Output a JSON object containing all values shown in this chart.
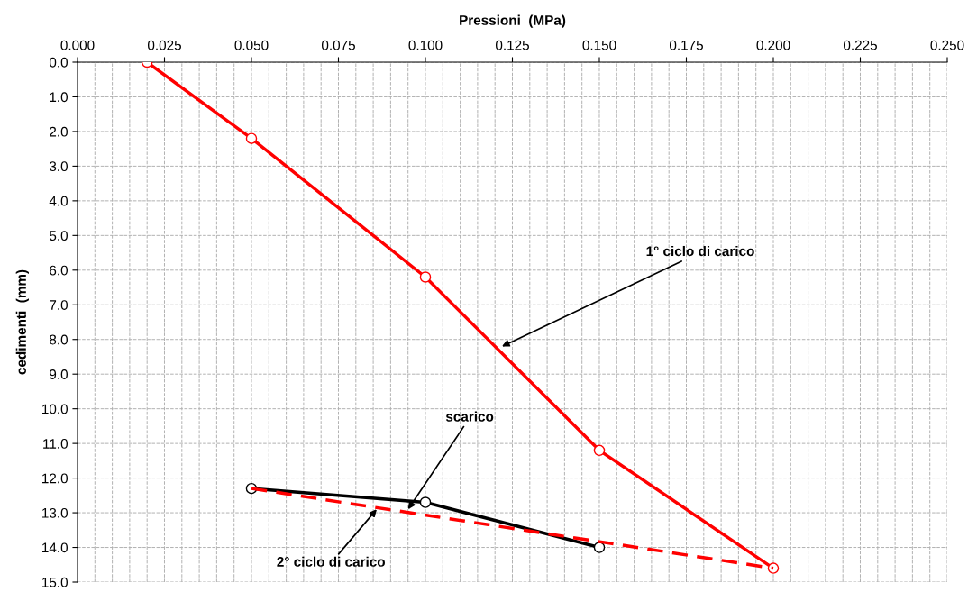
{
  "chart_data": {
    "type": "line",
    "xlabel": "Pressioni  (MPa)",
    "ylabel": "cedimenti  (mm)",
    "xlim": [
      0,
      0.25
    ],
    "ylim": [
      15,
      0
    ],
    "xticks": [
      {
        "value": 0,
        "label": "0.000"
      },
      {
        "value": 0.025,
        "label": "0.025"
      },
      {
        "value": 0.05,
        "label": "0.050"
      },
      {
        "value": 0.075,
        "label": "0.075"
      },
      {
        "value": 0.1,
        "label": "0.100"
      },
      {
        "value": 0.125,
        "label": "0.125"
      },
      {
        "value": 0.15,
        "label": "0.150"
      },
      {
        "value": 0.175,
        "label": "0.175"
      },
      {
        "value": 0.2,
        "label": "0.200"
      },
      {
        "value": 0.225,
        "label": "0.225"
      },
      {
        "value": 0.25,
        "label": "0.250"
      }
    ],
    "yticks": [
      {
        "value": 0,
        "label": "0.0"
      },
      {
        "value": 1,
        "label": "1.0"
      },
      {
        "value": 2,
        "label": "2.0"
      },
      {
        "value": 3,
        "label": "3.0"
      },
      {
        "value": 4,
        "label": "4.0"
      },
      {
        "value": 5,
        "label": "5.0"
      },
      {
        "value": 6,
        "label": "6.0"
      },
      {
        "value": 7,
        "label": "7.0"
      },
      {
        "value": 8,
        "label": "8.0"
      },
      {
        "value": 9,
        "label": "9.0"
      },
      {
        "value": 10,
        "label": "10.0"
      },
      {
        "value": 11,
        "label": "11.0"
      },
      {
        "value": 12,
        "label": "12.0"
      },
      {
        "value": 13,
        "label": "13.0"
      },
      {
        "value": 14,
        "label": "14.0"
      },
      {
        "value": 15,
        "label": "15.0"
      }
    ],
    "grid": true,
    "series": [
      {
        "color": "#ff0000",
        "x": [
          0.02,
          0.05,
          0.1,
          0.15,
          0.2
        ],
        "values": [
          0,
          2.2,
          6.2,
          11.2,
          14.6
        ],
        "marker": "circle",
        "line_style": "solid"
      },
      {
        "color": "#000000",
        "x": [
          0.15,
          0.1,
          0.05
        ],
        "values": [
          14.0,
          12.7,
          12.3
        ],
        "marker": "circle",
        "line_style": "solid"
      },
      {
        "color": "#ff0000",
        "x": [
          0.05,
          0.2
        ],
        "values": [
          12.3,
          14.6
        ],
        "marker": "none",
        "line_style": "dashed"
      }
    ],
    "annotations": [
      {
        "text": "1° ciclo di carico",
        "x": 0.122,
        "y": 8.2
      },
      {
        "text": "scarico",
        "x": 0.095,
        "y": 12.9
      },
      {
        "text": "2° ciclo di carico",
        "x": 0.086,
        "y": 12.9
      }
    ]
  }
}
